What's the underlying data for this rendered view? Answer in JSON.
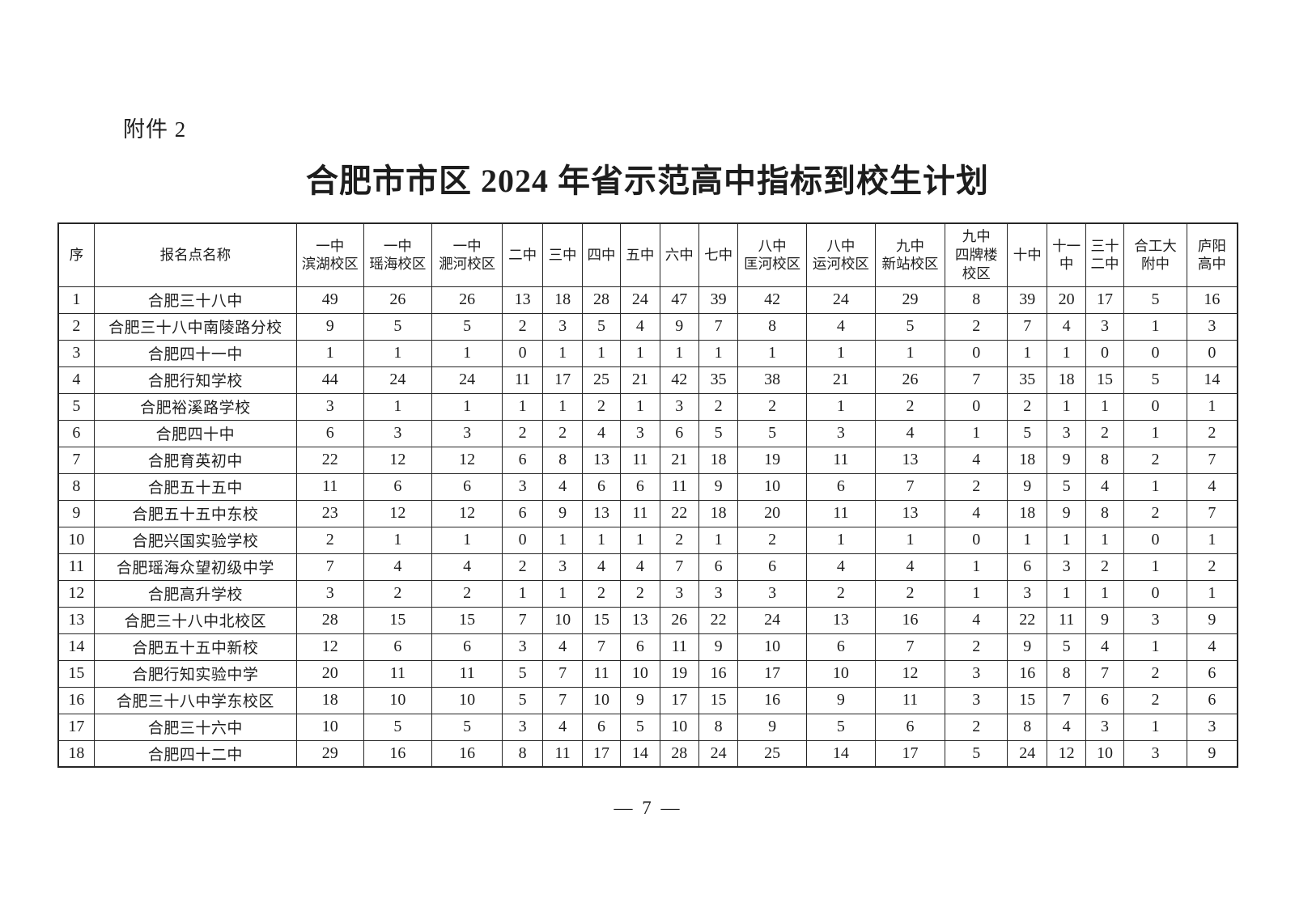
{
  "page": {
    "attachment_label": "附件 2",
    "title": "合肥市市区 2024 年省示范高中指标到校生计划",
    "page_number": "— 7 —"
  },
  "table": {
    "column_headers": [
      "序",
      "报名点名称",
      "一中\n滨湖校区",
      "一中\n瑶海校区",
      "一中\n淝河校区",
      "二中",
      "三中",
      "四中",
      "五中",
      "六中",
      "七中",
      "八中\n匡河校区",
      "八中\n运河校区",
      "九中\n新站校区",
      "九中\n四牌楼\n校区",
      "十中",
      "十一\n中",
      "三十\n二中",
      "合工大\n附中",
      "庐阳\n高中"
    ],
    "rows": [
      {
        "no": "1",
        "name": "合肥三十八中",
        "values": [
          49,
          26,
          26,
          13,
          18,
          28,
          24,
          47,
          39,
          42,
          24,
          29,
          8,
          39,
          20,
          17,
          5,
          16
        ]
      },
      {
        "no": "2",
        "name": "合肥三十八中南陵路分校",
        "values": [
          9,
          5,
          5,
          2,
          3,
          5,
          4,
          9,
          7,
          8,
          4,
          5,
          2,
          7,
          4,
          3,
          1,
          3
        ]
      },
      {
        "no": "3",
        "name": "合肥四十一中",
        "values": [
          1,
          1,
          1,
          0,
          1,
          1,
          1,
          1,
          1,
          1,
          1,
          1,
          0,
          1,
          1,
          0,
          0,
          0
        ]
      },
      {
        "no": "4",
        "name": "合肥行知学校",
        "values": [
          44,
          24,
          24,
          11,
          17,
          25,
          21,
          42,
          35,
          38,
          21,
          26,
          7,
          35,
          18,
          15,
          5,
          14
        ]
      },
      {
        "no": "5",
        "name": "合肥裕溪路学校",
        "values": [
          3,
          1,
          1,
          1,
          1,
          2,
          1,
          3,
          2,
          2,
          1,
          2,
          0,
          2,
          1,
          1,
          0,
          1
        ]
      },
      {
        "no": "6",
        "name": "合肥四十中",
        "values": [
          6,
          3,
          3,
          2,
          2,
          4,
          3,
          6,
          5,
          5,
          3,
          4,
          1,
          5,
          3,
          2,
          1,
          2
        ]
      },
      {
        "no": "7",
        "name": "合肥育英初中",
        "values": [
          22,
          12,
          12,
          6,
          8,
          13,
          11,
          21,
          18,
          19,
          11,
          13,
          4,
          18,
          9,
          8,
          2,
          7
        ]
      },
      {
        "no": "8",
        "name": "合肥五十五中",
        "values": [
          11,
          6,
          6,
          3,
          4,
          6,
          6,
          11,
          9,
          10,
          6,
          7,
          2,
          9,
          5,
          4,
          1,
          4
        ]
      },
      {
        "no": "9",
        "name": "合肥五十五中东校",
        "values": [
          23,
          12,
          12,
          6,
          9,
          13,
          11,
          22,
          18,
          20,
          11,
          13,
          4,
          18,
          9,
          8,
          2,
          7
        ]
      },
      {
        "no": "10",
        "name": "合肥兴国实验学校",
        "values": [
          2,
          1,
          1,
          0,
          1,
          1,
          1,
          2,
          1,
          2,
          1,
          1,
          0,
          1,
          1,
          1,
          0,
          1
        ]
      },
      {
        "no": "11",
        "name": "合肥瑶海众望初级中学",
        "values": [
          7,
          4,
          4,
          2,
          3,
          4,
          4,
          7,
          6,
          6,
          4,
          4,
          1,
          6,
          3,
          2,
          1,
          2
        ]
      },
      {
        "no": "12",
        "name": "合肥高升学校",
        "values": [
          3,
          2,
          2,
          1,
          1,
          2,
          2,
          3,
          3,
          3,
          2,
          2,
          1,
          3,
          1,
          1,
          0,
          1
        ]
      },
      {
        "no": "13",
        "name": "合肥三十八中北校区",
        "values": [
          28,
          15,
          15,
          7,
          10,
          15,
          13,
          26,
          22,
          24,
          13,
          16,
          4,
          22,
          11,
          9,
          3,
          9
        ]
      },
      {
        "no": "14",
        "name": "合肥五十五中新校",
        "values": [
          12,
          6,
          6,
          3,
          4,
          7,
          6,
          11,
          9,
          10,
          6,
          7,
          2,
          9,
          5,
          4,
          1,
          4
        ]
      },
      {
        "no": "15",
        "name": "合肥行知实验中学",
        "values": [
          20,
          11,
          11,
          5,
          7,
          11,
          10,
          19,
          16,
          17,
          10,
          12,
          3,
          16,
          8,
          7,
          2,
          6
        ]
      },
      {
        "no": "16",
        "name": "合肥三十八中学东校区",
        "values": [
          18,
          10,
          10,
          5,
          7,
          10,
          9,
          17,
          15,
          16,
          9,
          11,
          3,
          15,
          7,
          6,
          2,
          6
        ]
      },
      {
        "no": "17",
        "name": "合肥三十六中",
        "values": [
          10,
          5,
          5,
          3,
          4,
          6,
          5,
          10,
          8,
          9,
          5,
          6,
          2,
          8,
          4,
          3,
          1,
          3
        ]
      },
      {
        "no": "18",
        "name": "合肥四十二中",
        "values": [
          29,
          16,
          16,
          8,
          11,
          17,
          14,
          28,
          24,
          25,
          14,
          17,
          5,
          24,
          12,
          10,
          3,
          9
        ]
      }
    ]
  }
}
